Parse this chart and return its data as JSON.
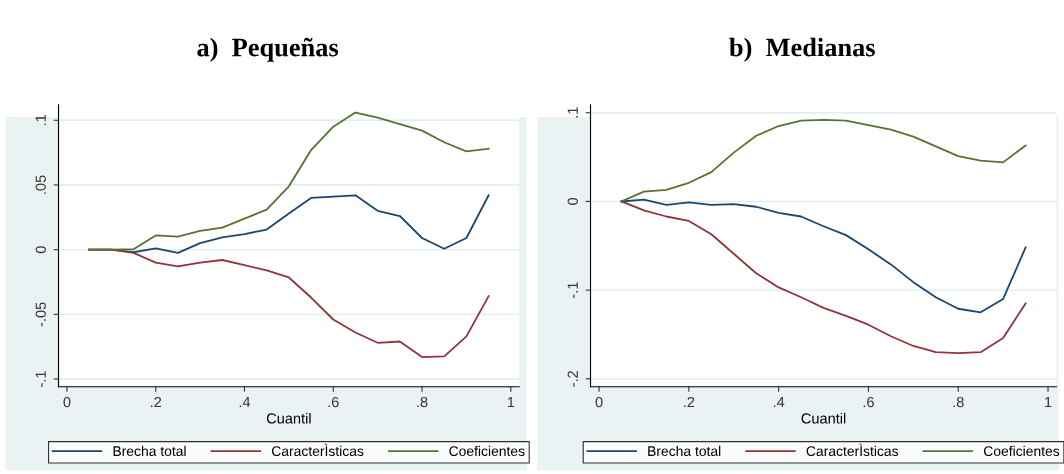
{
  "chart_data": [
    {
      "type": "line",
      "title": "a)  Pequeñas",
      "xlabel": "Cuantil",
      "x": [
        0.05,
        0.1,
        0.15,
        0.2,
        0.25,
        0.3,
        0.35,
        0.4,
        0.45,
        0.5,
        0.55,
        0.6,
        0.65,
        0.7,
        0.75,
        0.8,
        0.85,
        0.9,
        0.95
      ],
      "series": [
        {
          "name": "Brecha total",
          "color": "#1a476f",
          "values": [
            0,
            0,
            -0.002,
            0.001,
            -0.0025,
            0.005,
            0.0095,
            0.012,
            0.0155,
            0.028,
            0.04,
            0.041,
            0.042,
            0.03,
            0.026,
            0.009,
            0.0007,
            0.009,
            0.042
          ]
        },
        {
          "name": "CaracterÌsticas",
          "color": "#90353b",
          "values": [
            0,
            0,
            -0.0025,
            -0.01,
            -0.013,
            -0.01,
            -0.008,
            -0.012,
            -0.016,
            -0.0215,
            -0.037,
            -0.054,
            -0.064,
            -0.072,
            -0.071,
            -0.083,
            -0.0825,
            -0.067,
            -0.036
          ]
        },
        {
          "name": "Coeficientes",
          "color": "#55752f",
          "values": [
            0,
            0,
            0.0003,
            0.011,
            0.01,
            0.0145,
            0.017,
            0.024,
            0.031,
            0.049,
            0.077,
            0.095,
            0.106,
            0.102,
            0.097,
            0.092,
            0.083,
            0.076,
            0.078
          ]
        }
      ],
      "xlim": [
        -0.019,
        1.019
      ],
      "ylim": [
        -0.106,
        0.112
      ],
      "xticks": [
        0,
        {
          "value": 0.2,
          "label": ".2"
        },
        {
          "value": 0.4,
          "label": ".4"
        },
        {
          "value": 0.6,
          "label": ".6"
        },
        {
          "value": 0.8,
          "label": ".8"
        },
        1
      ],
      "yticks": [
        {
          "value": -0.1,
          "label": "-.1"
        },
        {
          "value": -0.05,
          "label": "-.05"
        },
        0,
        {
          "value": 0.05,
          "label": ".05"
        },
        {
          "value": 0.1,
          "label": ".1"
        }
      ],
      "grid": "y",
      "legend": "bottom",
      "marker": "none",
      "line_style": "solid"
    },
    {
      "type": "line",
      "title": "b)  Medianas",
      "xlabel": "Cuantil",
      "x": [
        0.05,
        0.1,
        0.15,
        0.2,
        0.25,
        0.3,
        0.35,
        0.4,
        0.45,
        0.5,
        0.55,
        0.6,
        0.65,
        0.7,
        0.75,
        0.8,
        0.85,
        0.9,
        0.95
      ],
      "series": [
        {
          "name": "Brecha total",
          "color": "#1a476f",
          "values": [
            0,
            0.002,
            -0.004,
            -0.001,
            -0.004,
            -0.003,
            -0.006,
            -0.013,
            -0.017,
            -0.028,
            -0.038,
            -0.054,
            -0.071,
            -0.091,
            -0.108,
            -0.121,
            -0.125,
            -0.11,
            -0.052
          ]
        },
        {
          "name": "CaracterÌsticas",
          "color": "#90353b",
          "values": [
            0,
            -0.01,
            -0.017,
            -0.022,
            -0.037,
            -0.059,
            -0.081,
            -0.097,
            -0.108,
            -0.12,
            -0.129,
            -0.139,
            -0.152,
            -0.163,
            -0.17,
            -0.171,
            -0.17,
            -0.154,
            -0.115
          ]
        },
        {
          "name": "Coeficientes",
          "color": "#55752f",
          "values": [
            0,
            0.011,
            0.013,
            0.021,
            0.033,
            0.055,
            0.074,
            0.085,
            0.091,
            0.092,
            0.091,
            0.086,
            0.081,
            0.073,
            0.062,
            0.051,
            0.046,
            0.044,
            0.063
          ]
        }
      ],
      "xlim": [
        -0.019,
        1.019
      ],
      "ylim": [
        -0.209,
        0.109
      ],
      "xticks": [
        0,
        {
          "value": 0.2,
          "label": ".2"
        },
        {
          "value": 0.4,
          "label": ".4"
        },
        {
          "value": 0.6,
          "label": ".6"
        },
        {
          "value": 0.8,
          "label": ".8"
        },
        1
      ],
      "yticks": [
        {
          "value": -0.2,
          "label": "-.2"
        },
        {
          "value": -0.1,
          "label": "-.1"
        },
        0,
        {
          "value": 0.1,
          "label": ".1"
        }
      ],
      "grid": "y",
      "legend": "bottom",
      "marker": "none",
      "line_style": "solid"
    }
  ]
}
